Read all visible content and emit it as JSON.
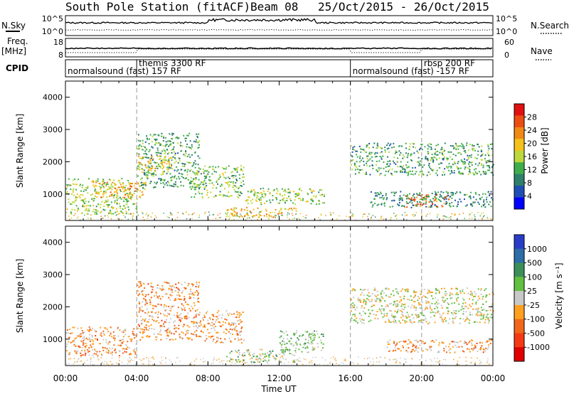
{
  "header": {
    "station": "South Pole Station (fitACF)",
    "beam": "Beam 08",
    "date_range": "25/Oct/2015 - 26/Oct/2015"
  },
  "nsky_panel": {
    "left_label": "N.Sky",
    "left_ticks": [
      "10^5",
      "10^0"
    ],
    "right_ticks": [
      "10^5",
      "10^0"
    ],
    "right_label": "N.Search"
  },
  "freq_panel": {
    "left_label_1": "Freq.",
    "left_label_2": "[MHz]",
    "left_ticks": [
      "18",
      "8"
    ],
    "right_ticks": [
      "60",
      "0"
    ],
    "right_label": "Nave"
  },
  "cpid_panel": {
    "label": "CPID",
    "segments": [
      {
        "name": "normalsound (fast) 157 RF",
        "start_hour": 0,
        "end_hour": 4,
        "row": 2
      },
      {
        "name": "themis 3300 RF",
        "start_hour": 4,
        "end_hour": 16,
        "row": 1
      },
      {
        "name": "normalsound (fast) -157 RF",
        "start_hour": 16,
        "end_hour": 20,
        "row": 2
      },
      {
        "name": "rbsp 200 RF",
        "start_hour": 20,
        "end_hour": 24,
        "row": 1
      }
    ]
  },
  "time_axis": {
    "label": "Time UT",
    "ticks": [
      "00:00",
      "04:00",
      "08:00",
      "12:00",
      "16:00",
      "20:00",
      "00:00"
    ]
  },
  "colors": {
    "power_scale": [
      "#0000ff",
      "#1e4fb4",
      "#2e7f6b",
      "#3fae4a",
      "#bcd83c",
      "#f4c21a",
      "#f08a14",
      "#ec4d12",
      "#e01010"
    ],
    "velocity_scale": [
      "#2a3cc7",
      "#2d6da8",
      "#3d8f5a",
      "#62c040",
      "#c8c8c8",
      "#ffa11f",
      "#f2661a",
      "#f53a13",
      "#e00000"
    ]
  },
  "chart_data": [
    {
      "type": "heatmap",
      "title": "",
      "xlabel": "",
      "ylabel": "Slant Range [km]",
      "xlim": [
        0,
        24
      ],
      "ylim": [
        180,
        4500
      ],
      "yticks": [
        1000,
        2000,
        3000,
        4000
      ],
      "colorbar_label": "Power [dB]",
      "colorbar_ticks": [
        "28",
        "24",
        "20",
        "16",
        "12",
        "8",
        "4"
      ],
      "colorbar_range": [
        0,
        30
      ],
      "scatter_regions": [
        {
          "x": [
            0.0,
            4.0
          ],
          "y": [
            400,
            1500
          ],
          "value": 14
        },
        {
          "x": [
            1.5,
            4.5
          ],
          "y": [
            900,
            1400
          ],
          "value": 20
        },
        {
          "x": [
            4.0,
            7.5
          ],
          "y": [
            1200,
            2900
          ],
          "value": 10
        },
        {
          "x": [
            4.0,
            6.0
          ],
          "y": [
            1700,
            2200
          ],
          "value": 18
        },
        {
          "x": [
            7.0,
            10.0
          ],
          "y": [
            900,
            1900
          ],
          "value": 12
        },
        {
          "x": [
            10.0,
            14.5
          ],
          "y": [
            700,
            1200
          ],
          "value": 14
        },
        {
          "x": [
            9.0,
            13.0
          ],
          "y": [
            300,
            600
          ],
          "value": 20
        },
        {
          "x": [
            16.0,
            24.0
          ],
          "y": [
            1600,
            2600
          ],
          "value": 10
        },
        {
          "x": [
            19.0,
            21.5
          ],
          "y": [
            600,
            1000
          ],
          "value": 24
        },
        {
          "x": [
            17.0,
            24.0
          ],
          "y": [
            600,
            1100
          ],
          "value": 8
        }
      ]
    },
    {
      "type": "heatmap",
      "title": "",
      "xlabel": "Time UT",
      "ylabel": "Slant Range [km]",
      "xlim": [
        0,
        24
      ],
      "ylim": [
        180,
        4500
      ],
      "yticks": [
        1000,
        2000,
        3000,
        4000
      ],
      "colorbar_label": "Velocity [m s⁻¹]",
      "colorbar_ticks": [
        "1000",
        "500",
        "100",
        "25",
        "-25",
        "-100",
        "-500",
        "-1000"
      ],
      "colorbar_range": [
        -1000,
        1000
      ],
      "scatter_regions": [
        {
          "x": [
            0.0,
            4.0
          ],
          "y": [
            500,
            1400
          ],
          "value": -300
        },
        {
          "x": [
            4.0,
            7.5
          ],
          "y": [
            1000,
            2800
          ],
          "value": -300
        },
        {
          "x": [
            7.5,
            10.0
          ],
          "y": [
            900,
            1900
          ],
          "value": -250
        },
        {
          "x": [
            9.0,
            13.0
          ],
          "y": [
            300,
            700
          ],
          "value": 150
        },
        {
          "x": [
            12.0,
            14.5
          ],
          "y": [
            600,
            1300
          ],
          "value": 200
        },
        {
          "x": [
            16.0,
            24.0
          ],
          "y": [
            1500,
            2600
          ],
          "value": 0
        },
        {
          "x": [
            18.0,
            24.0
          ],
          "y": [
            600,
            1000
          ],
          "value": -300
        }
      ]
    }
  ]
}
